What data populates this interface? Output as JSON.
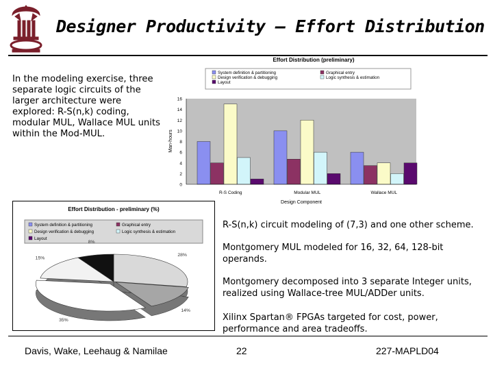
{
  "slide": {
    "title": "Designer Productivity – Effort Distribution",
    "intro": "In the modeling exercise, three separate logic circuits of the larger architecture were explored: R-S(n,k) coding, modular MUL, Wallace MUL units within the Mod-MUL.",
    "bullets": [
      "R-S(n,k) circuit modeling of (7,3) and one other scheme.",
      "Montgomery MUL modeled for 16, 32, 64, 128-bit operands.",
      "Montgomery decomposed into 3 separate Integer units, realized using Wallace-tree MUL/ADDer units.",
      "Xilinx Spartan® FPGAs targeted for cost, power, performance and area tradeoffs."
    ],
    "footer": {
      "authors": "Davis, Wake, Leehaug & Namilae",
      "page": "22",
      "code": "227-MAPLD04"
    },
    "logo": {
      "icon": "university-seal-icon",
      "color": "#7a1f2b"
    }
  },
  "colors": {
    "system": "#8a8ff0",
    "graphical": "#8c3263",
    "design": "#fbfbc8",
    "logic": "#d2f5fa",
    "layout": "#5a0a6e",
    "plot_bg": "#c0c0c0"
  },
  "chart_data": [
    {
      "type": "bar",
      "title": "Effort Distribution (preliminary)",
      "xlabel": "Design Component",
      "ylabel": "Man-hours",
      "categories": [
        "R-S Coding",
        "Modular MUL",
        "Wallace MUL"
      ],
      "ylim": [
        0,
        16
      ],
      "yticks": [
        "0",
        "2",
        "4",
        "6",
        "8",
        "10",
        "12",
        "14",
        "16"
      ],
      "legend_position": "top",
      "grid": false,
      "series": [
        {
          "name": "System definition & partitioning",
          "values": [
            8,
            10,
            6
          ]
        },
        {
          "name": "Graphical entry",
          "values": [
            4,
            4.7,
            3.5
          ]
        },
        {
          "name": "Design verification & debugging",
          "values": [
            15,
            12,
            4
          ]
        },
        {
          "name": "Logic synthesis & estimation",
          "values": [
            5,
            6,
            2
          ]
        },
        {
          "name": "Layout",
          "values": [
            1,
            2,
            4
          ]
        }
      ]
    },
    {
      "type": "pie",
      "title": "Effort Distribution - preliminary (%)",
      "legend_position": "top",
      "slices": [
        {
          "name": "System definition & partitioning",
          "value": 28,
          "label": "28%"
        },
        {
          "name": "Graphical entry",
          "value": 14,
          "label": "14%"
        },
        {
          "name": "Design verification & debugging",
          "value": 35,
          "label": "35%"
        },
        {
          "name": "Logic synthesis & estimation",
          "value": 15,
          "label": "15%"
        },
        {
          "name": "Layout",
          "value": 8,
          "label": "8%"
        }
      ]
    }
  ]
}
